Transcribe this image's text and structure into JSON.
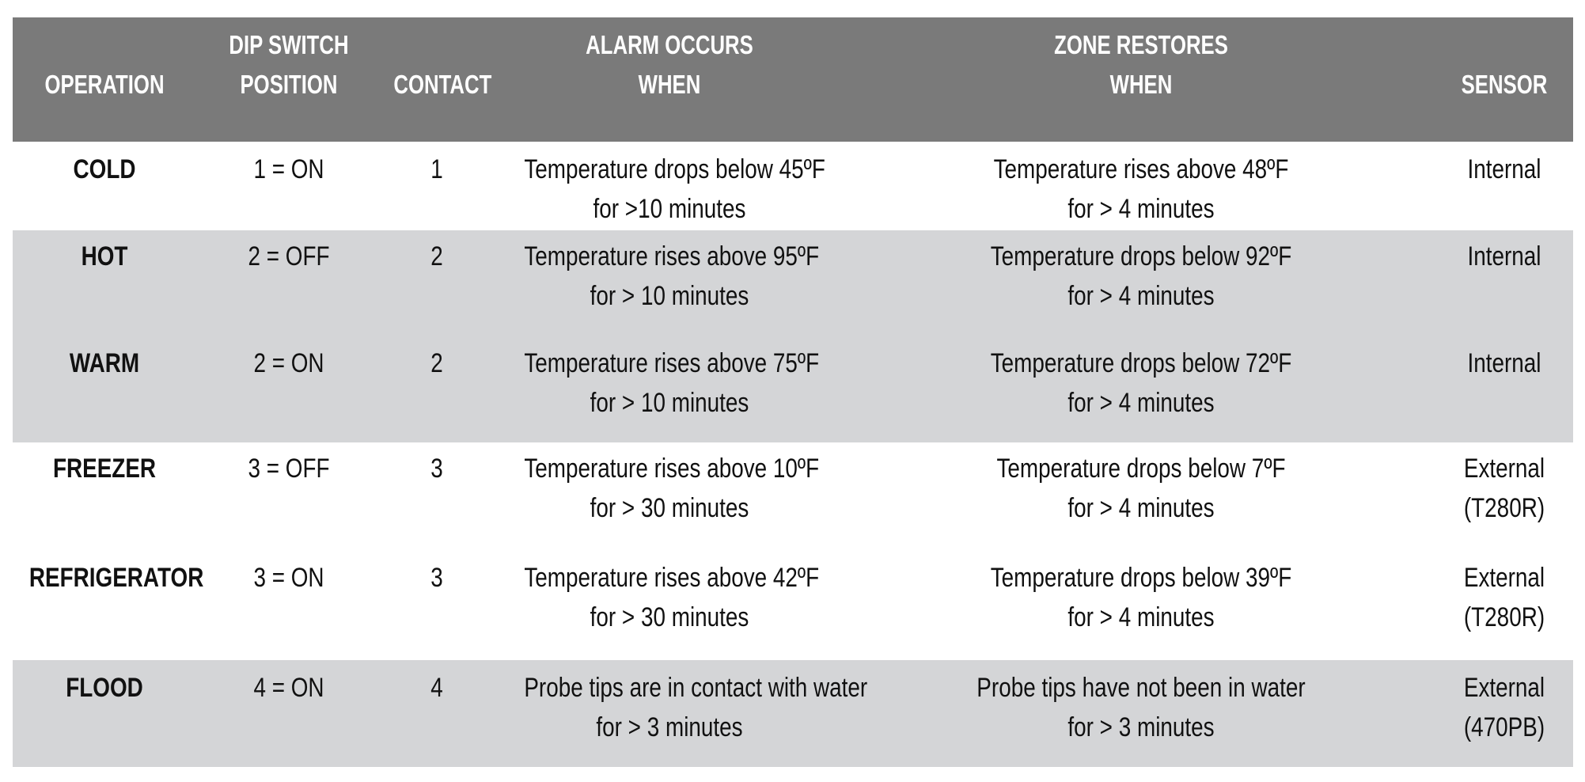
{
  "headers": [
    {
      "lines": [
        "",
        "OPERATION"
      ]
    },
    {
      "lines": [
        "DIP SWITCH",
        "POSITION"
      ]
    },
    {
      "lines": [
        "",
        "CONTACT"
      ]
    },
    {
      "lines": [
        "ALARM OCCURS",
        "WHEN"
      ]
    },
    {
      "lines": [
        "ZONE RESTORES",
        "WHEN"
      ]
    },
    {
      "lines": [
        "",
        "SENSOR"
      ]
    }
  ],
  "rows": [
    {
      "operation": "COLD",
      "dip": "1 = ON",
      "contact": "1",
      "alarm": [
        "Temperature drops below 45ºF",
        "for >10 minutes"
      ],
      "restore": [
        "Temperature rises above 48ºF",
        "for > 4 minutes"
      ],
      "sensor": [
        "Internal",
        ""
      ]
    },
    {
      "operation": "HOT",
      "dip": "2 = OFF",
      "contact": "2",
      "alarm": [
        "Temperature rises above 95ºF",
        "for > 10 minutes"
      ],
      "restore": [
        "Temperature drops below 92ºF",
        "for > 4 minutes"
      ],
      "sensor": [
        "Internal",
        ""
      ]
    },
    {
      "operation": "WARM",
      "dip": "2 = ON",
      "contact": "2",
      "alarm": [
        "Temperature rises above 75ºF",
        "for > 10 minutes"
      ],
      "restore": [
        "Temperature drops below 72ºF",
        "for > 4 minutes"
      ],
      "sensor": [
        "Internal",
        ""
      ]
    },
    {
      "operation": "FREEZER",
      "dip": "3 = OFF",
      "contact": "3",
      "alarm": [
        "Temperature rises above 10ºF",
        "for > 30 minutes"
      ],
      "restore": [
        "Temperature drops below 7ºF",
        "for > 4 minutes"
      ],
      "sensor": [
        "External",
        "(T280R)"
      ]
    },
    {
      "operation": "REFRIGERATOR",
      "dip": "3 = ON",
      "contact": "3",
      "alarm": [
        "Temperature rises above 42ºF",
        "for > 30 minutes"
      ],
      "restore": [
        "Temperature drops below 39ºF",
        "for > 4 minutes"
      ],
      "sensor": [
        "External",
        "(T280R)"
      ]
    },
    {
      "operation": "FLOOD",
      "dip": "4 = ON",
      "contact": "4",
      "alarm": [
        "Probe tips are in contact with water",
        "for > 3 minutes"
      ],
      "restore": [
        "Probe tips have not been in water",
        "for > 3 minutes"
      ],
      "sensor": [
        "External",
        "(470PB)"
      ]
    }
  ],
  "colors": {
    "header_bg": "#7a7a7a",
    "band_grey": "#d4d5d7",
    "band_white": "#ffffff"
  }
}
